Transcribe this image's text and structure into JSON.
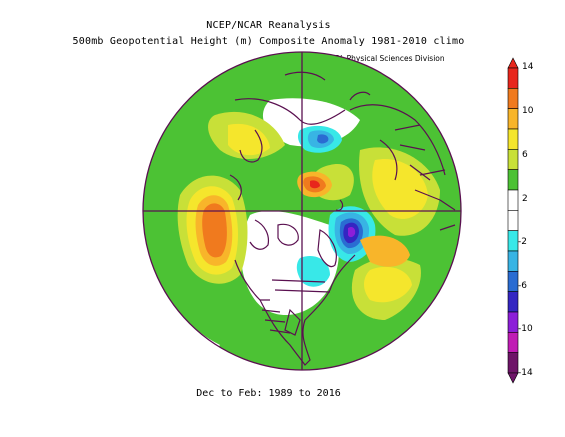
{
  "title_line1": "NCEP/NCAR Reanalysis",
  "title_line2": "500mb Geopotential Height (m) Composite Anomaly 1981-2010 climo",
  "credit": "NOAA/ESRL Physical Sciences Division",
  "footer": "Dec to Feb: 1989 to 2016",
  "colorbar": {
    "labels": [
      "14",
      "10",
      "6",
      "2",
      "-2",
      "-6",
      "-10",
      "-14"
    ],
    "colors": [
      "#e8261c",
      "#f07a1e",
      "#f8b52a",
      "#f5e62c",
      "#c8e038",
      "#4cc234",
      "#ffffff",
      "#ffffff",
      "#38e8e8",
      "#38b4e4",
      "#2a6cd2",
      "#3426c2",
      "#8c1ed8",
      "#c01cb4",
      "#6e1468"
    ]
  }
}
